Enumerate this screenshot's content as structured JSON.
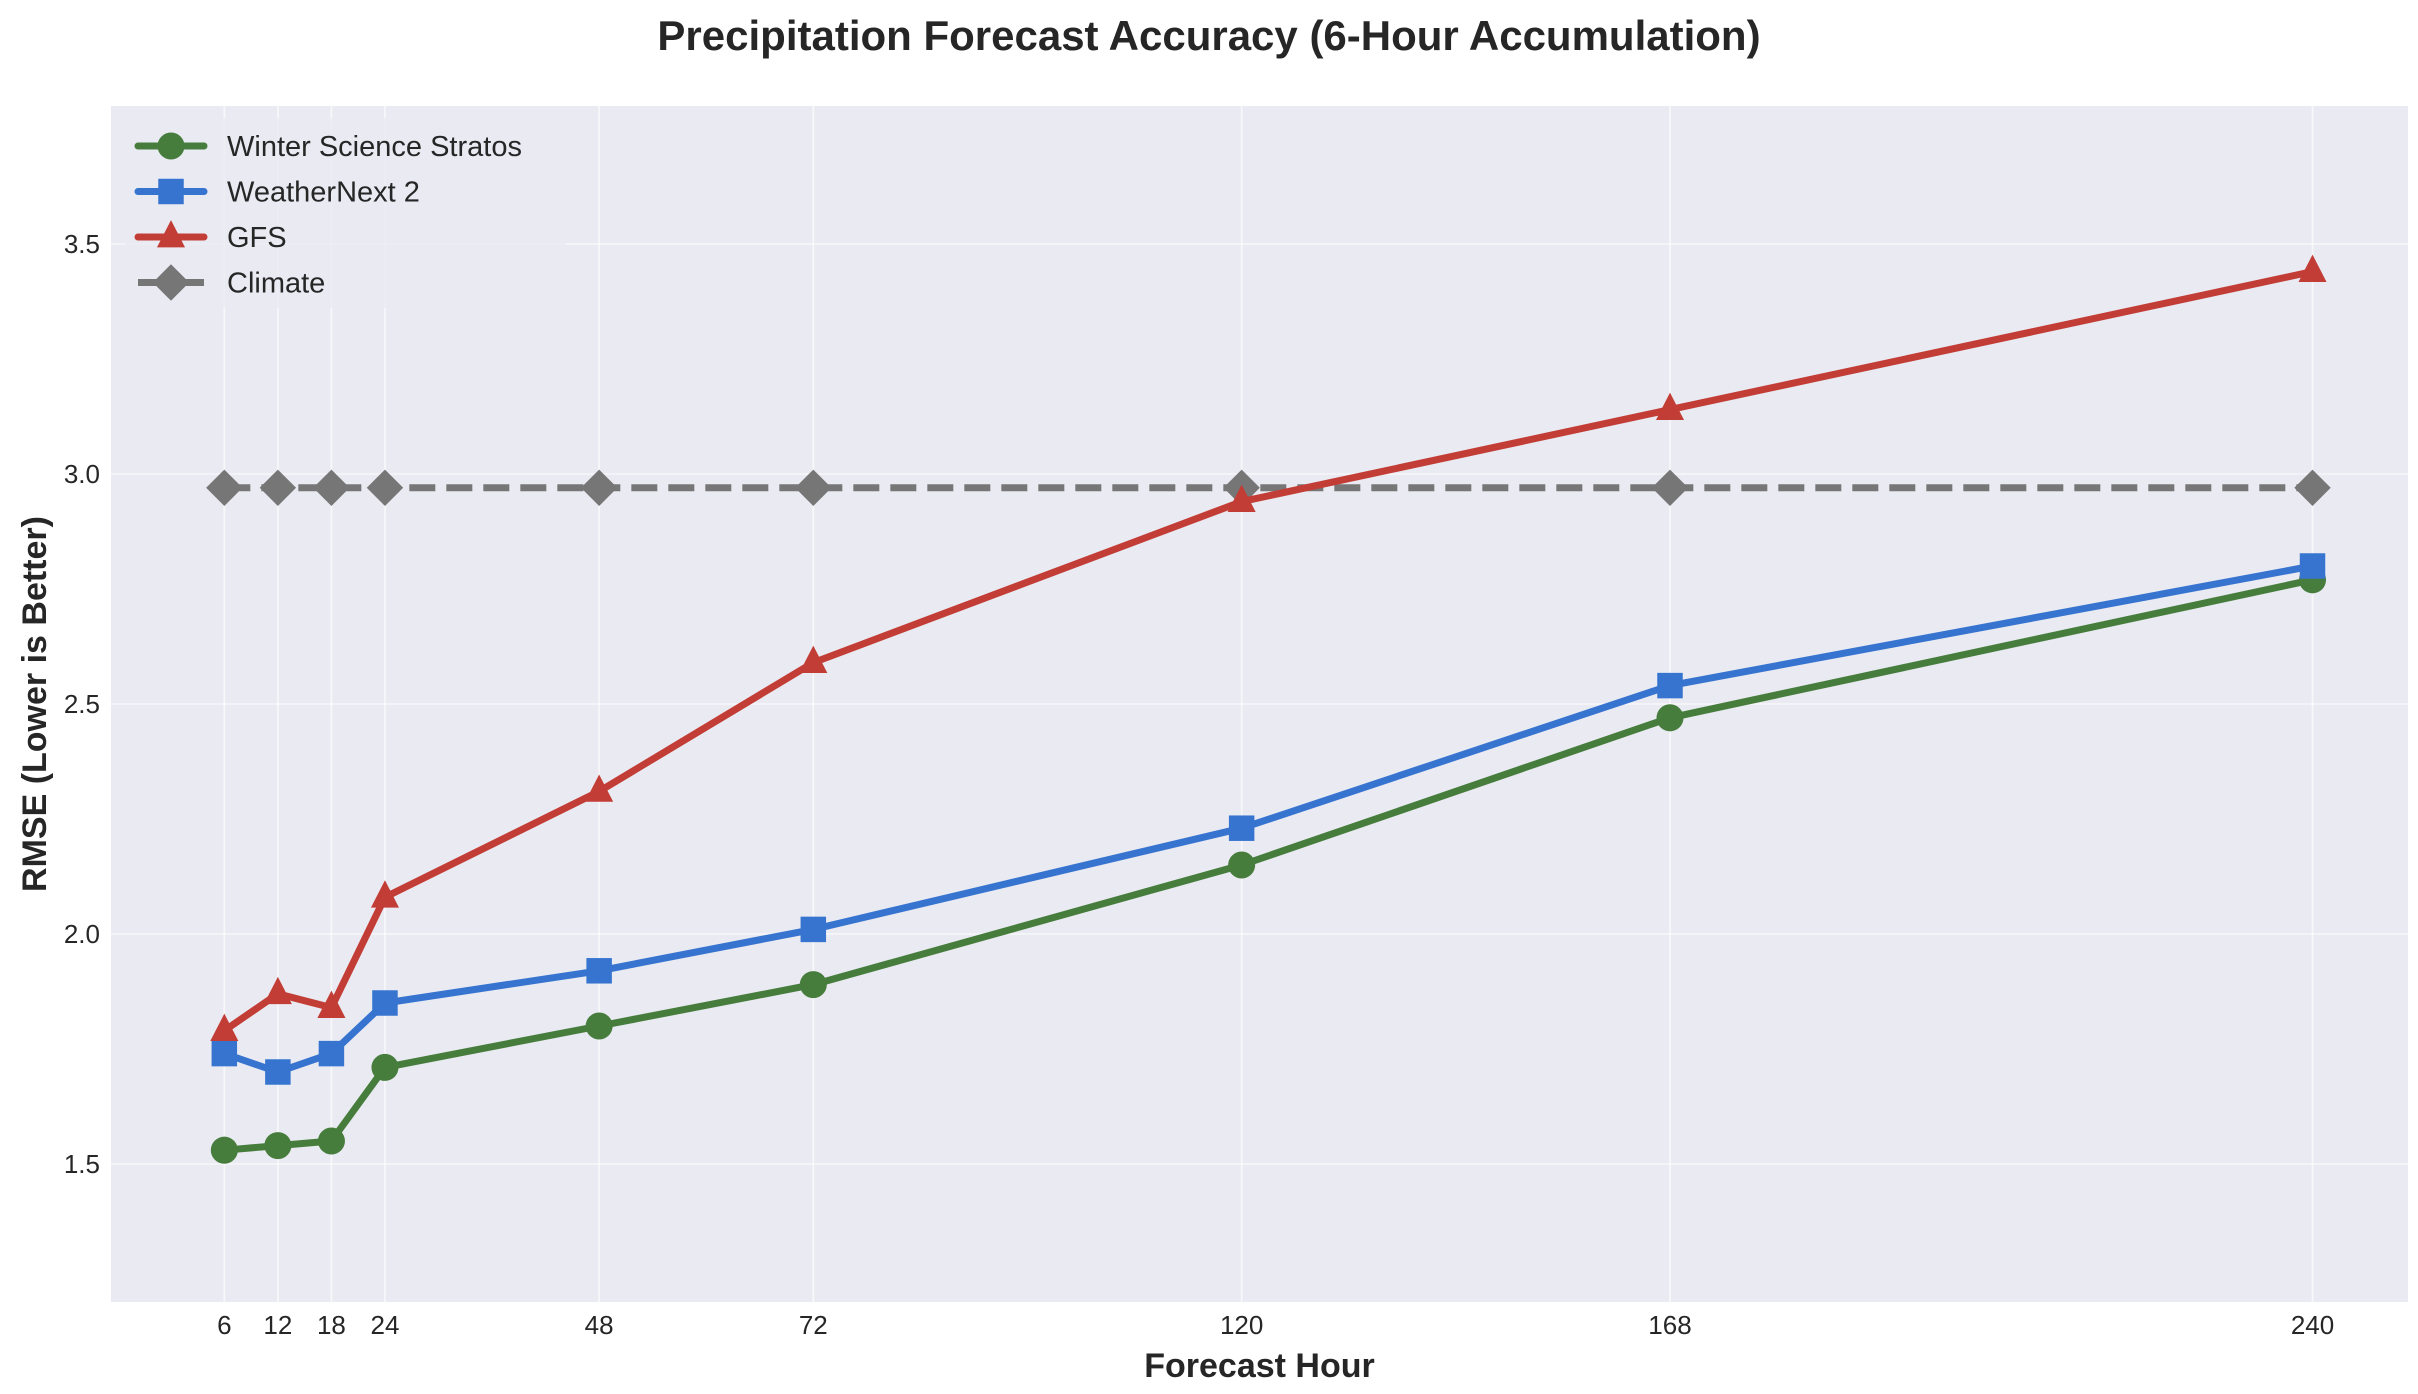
{
  "chart_data": {
    "type": "line",
    "title": "Precipitation Forecast Accuracy (6-Hour Accumulation)",
    "xlabel": "Forecast Hour",
    "ylabel": "RMSE (Lower is Better)",
    "x": [
      6,
      12,
      18,
      24,
      48,
      72,
      120,
      168,
      240
    ],
    "x_ticks": [
      6,
      12,
      18,
      24,
      48,
      72,
      120,
      168,
      240
    ],
    "y_ticks": [
      1.5,
      2.0,
      2.5,
      3.0,
      3.5
    ],
    "y_tick_labels": [
      "1.5",
      "2.0",
      "2.5",
      "3.0",
      "3.5"
    ],
    "xlim": [
      -6.7,
      250.7
    ],
    "ylim": [
      1.2,
      3.8
    ],
    "grid": true,
    "legend_position": "upper left",
    "background": "#eaeaf2",
    "series": [
      {
        "name": "Winter Science Stratos",
        "color": "#467d3c",
        "marker": "circle",
        "linestyle": "solid",
        "values": [
          1.53,
          1.54,
          1.55,
          1.71,
          1.8,
          1.89,
          2.15,
          2.47,
          2.77
        ]
      },
      {
        "name": "WeatherNext 2",
        "color": "#3674cf",
        "marker": "square",
        "linestyle": "solid",
        "values": [
          1.74,
          1.7,
          1.74,
          1.85,
          1.92,
          2.01,
          2.23,
          2.54,
          2.8
        ]
      },
      {
        "name": "GFS",
        "color": "#c23d35",
        "marker": "triangle",
        "linestyle": "solid",
        "values": [
          1.79,
          1.87,
          1.84,
          2.08,
          2.31,
          2.59,
          2.94,
          3.14,
          3.44
        ]
      },
      {
        "name": "Climate",
        "color": "#767676",
        "marker": "diamond",
        "linestyle": "dashed",
        "values": [
          2.97,
          2.97,
          2.97,
          2.97,
          2.97,
          2.97,
          2.97,
          2.97,
          2.97
        ]
      }
    ]
  }
}
